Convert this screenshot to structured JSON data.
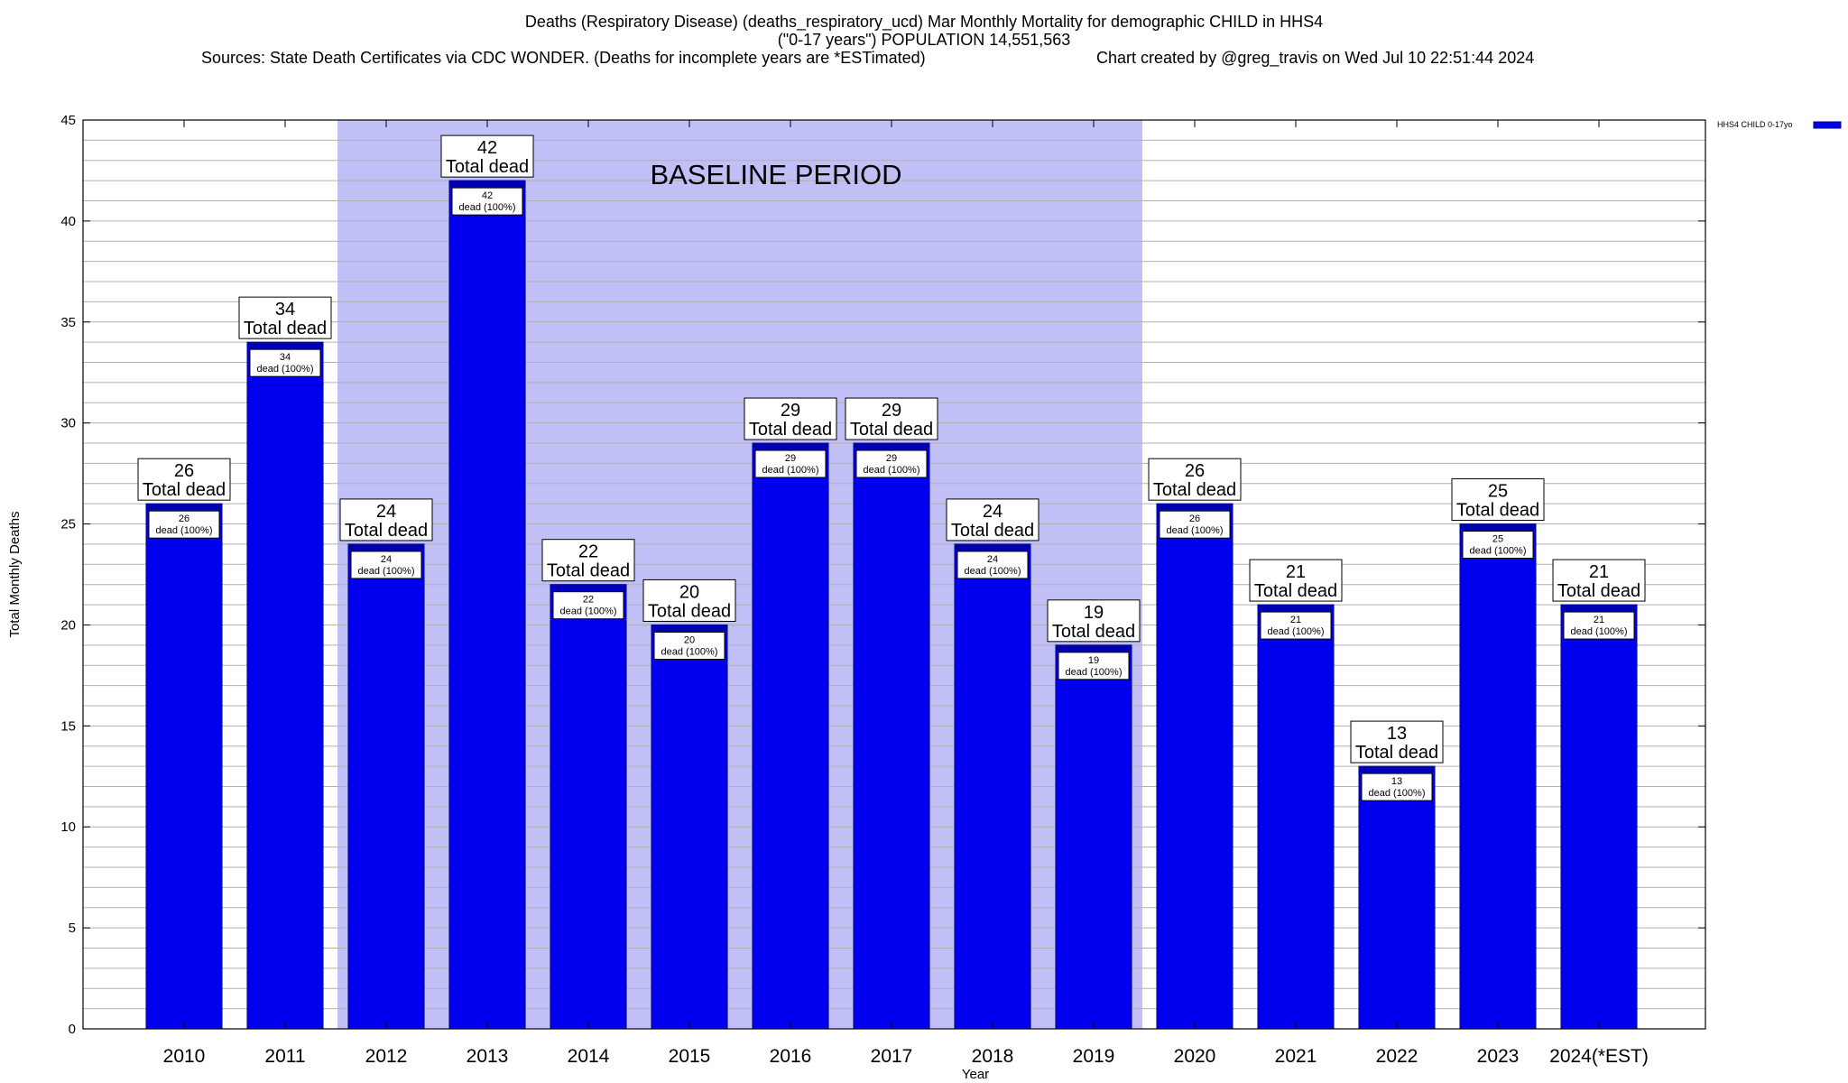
{
  "header": {
    "line1": "Deaths (Respiratory Disease) (deaths_respiratory_ucd) Mar Monthly Mortality for demographic CHILD in HHS4",
    "line2": "(\"0-17 years\") POPULATION 14,551,563",
    "sources": "Sources: State Death Certificates via CDC WONDER. (Deaths for incomplete years are *ESTimated)",
    "credit": "Chart created by @greg_travis on Wed Jul 10 22:51:44 2024"
  },
  "chart_data": {
    "type": "bar",
    "categories": [
      "2010",
      "2011",
      "2012",
      "2013",
      "2014",
      "2015",
      "2016",
      "2017",
      "2018",
      "2019",
      "2020",
      "2021",
      "2022",
      "2023",
      "2024(*EST)"
    ],
    "series": [
      {
        "name": "HHS4 CHILD 0-17yo",
        "values": [
          26,
          34,
          24,
          42,
          22,
          20,
          29,
          29,
          24,
          19,
          26,
          21,
          13,
          25,
          21
        ]
      }
    ],
    "xlabel": "Year",
    "ylabel": "Total Monthly Deaths",
    "ylim": [
      0,
      45
    ],
    "yticks": [
      0,
      5,
      10,
      15,
      20,
      25,
      30,
      35,
      40,
      45
    ],
    "grid": true,
    "legend": "top-right",
    "baseline": {
      "label": "BASELINE PERIOD",
      "start": "2012",
      "end": "2019"
    },
    "top_label_suffix": "Total dead",
    "inner_label_suffix": "dead (100%)",
    "colors": {
      "bar": "#0000ee",
      "bar_edge": "#000080",
      "baseline_fill": "#c0c0f6",
      "grid": "#b0b0b0"
    }
  }
}
